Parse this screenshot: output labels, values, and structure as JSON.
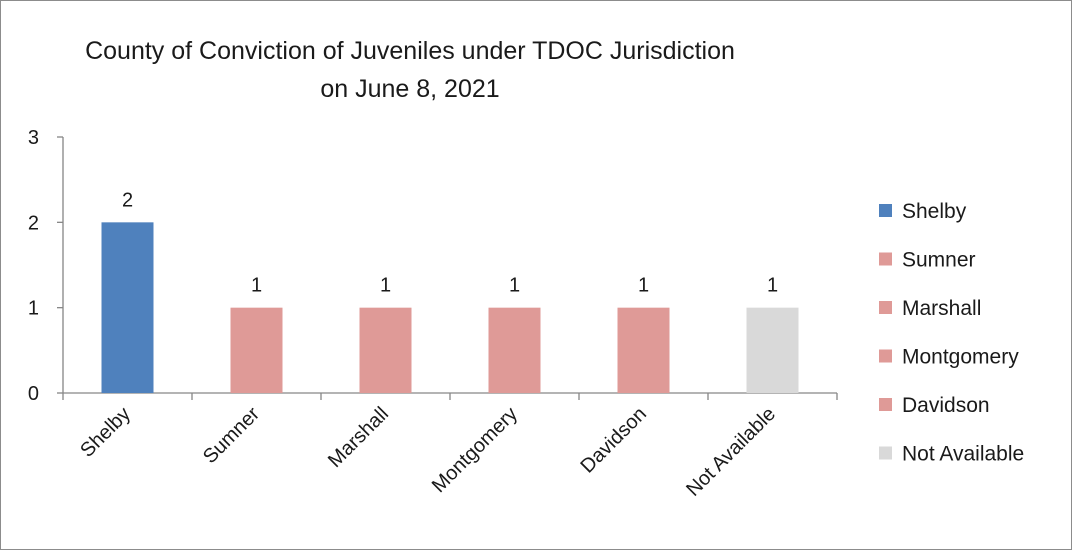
{
  "chart_data": {
    "type": "bar",
    "title_lines": [
      "County of Conviction of Juveniles under TDOC Jurisdiction",
      "on June 8, 2021"
    ],
    "categories": [
      "Shelby",
      "Sumner",
      "Marshall",
      "Montgomery",
      "Davidson",
      "Not Available"
    ],
    "values": [
      2,
      1,
      1,
      1,
      1,
      1
    ],
    "colors": [
      "#4f81bd",
      "#df9a97",
      "#df9a97",
      "#df9a97",
      "#df9a97",
      "#d9d9d9"
    ],
    "ylim": [
      0,
      3
    ],
    "yticks": [
      0,
      1,
      2,
      3
    ],
    "xlabel": "",
    "ylabel": "",
    "grid": false,
    "legend_position": "right",
    "data_labels": true
  }
}
